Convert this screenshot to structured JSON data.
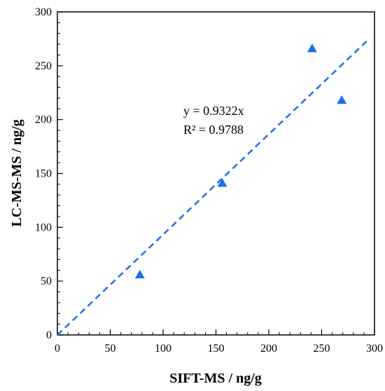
{
  "chart_data": {
    "type": "scatter",
    "xlabel": "SIFT-MS / ng/g",
    "ylabel": "LC-MS-MS / ng/g",
    "xlim": [
      0,
      300
    ],
    "ylim": [
      0,
      300
    ],
    "x_ticks": [
      0,
      50,
      100,
      150,
      200,
      250,
      300
    ],
    "y_ticks": [
      0,
      50,
      100,
      150,
      200,
      250,
      300
    ],
    "x_tick_labels": [
      "0",
      "50",
      "100",
      "150",
      "200",
      "250",
      "300"
    ],
    "y_tick_labels": [
      "0",
      "50",
      "100",
      "150",
      "200",
      "250",
      "300"
    ],
    "grid": false,
    "marker": "triangle",
    "points": [
      {
        "x": 78,
        "y": 56
      },
      {
        "x": 156,
        "y": 141
      },
      {
        "x": 241,
        "y": 266
      },
      {
        "x": 269,
        "y": 218
      }
    ],
    "trendline": {
      "slope": 0.9322,
      "intercept": 0,
      "x_range": [
        0,
        295
      ],
      "style": "dashed"
    },
    "annotation": {
      "line1": "y = 0.9322x",
      "line2": "R² = 0.9788"
    },
    "colors": {
      "marker": "#1f6fe5",
      "trendline": "#1f6fe5",
      "axis": "#000000"
    }
  }
}
